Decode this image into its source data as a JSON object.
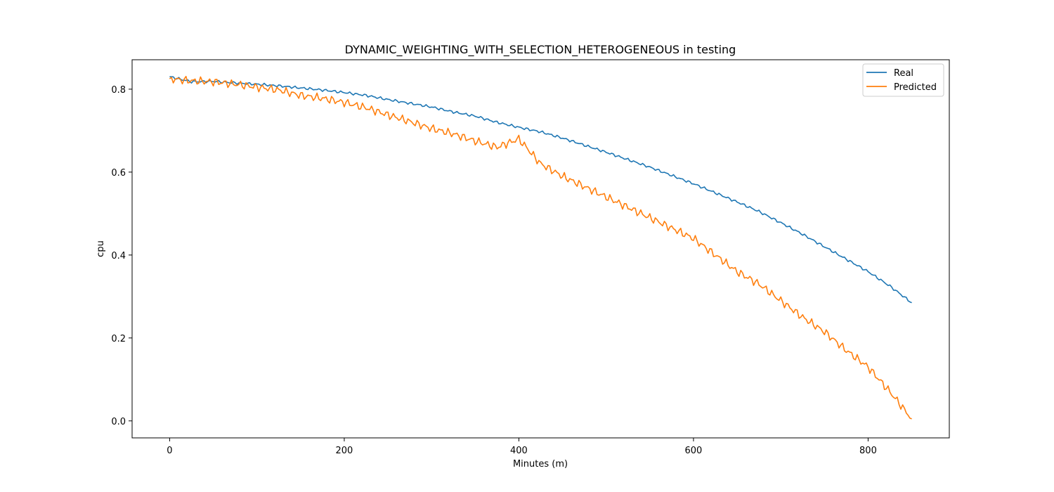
{
  "chart_data": {
    "type": "line",
    "title": "DYNAMIC_WEIGHTING_WITH_SELECTION_HETEROGENEOUS in testing",
    "xlabel": "Minutes (m)",
    "ylabel": "cpu",
    "xlim": [
      -43,
      893
    ],
    "ylim": [
      -0.041,
      0.871
    ],
    "xticks": [
      0,
      200,
      400,
      600,
      800
    ],
    "yticks": [
      0.0,
      0.2,
      0.4,
      0.6,
      0.8
    ],
    "ytick_labels": [
      "0.0",
      "0.2",
      "0.4",
      "0.6",
      "0.8"
    ],
    "grid": false,
    "legend_position": "top-right",
    "series": [
      {
        "name": "Real",
        "color": "#1f77b4",
        "x": [
          0,
          25,
          50,
          75,
          100,
          125,
          150,
          175,
          200,
          225,
          250,
          275,
          300,
          325,
          350,
          375,
          400,
          425,
          450,
          475,
          500,
          525,
          550,
          575,
          600,
          625,
          650,
          675,
          700,
          725,
          750,
          775,
          800,
          825,
          850
        ],
        "values": [
          0.83,
          0.818,
          0.819,
          0.815,
          0.812,
          0.808,
          0.803,
          0.798,
          0.792,
          0.785,
          0.775,
          0.766,
          0.757,
          0.745,
          0.735,
          0.72,
          0.708,
          0.697,
          0.682,
          0.665,
          0.648,
          0.63,
          0.612,
          0.592,
          0.572,
          0.55,
          0.528,
          0.505,
          0.478,
          0.45,
          0.42,
          0.39,
          0.36,
          0.325,
          0.285
        ]
      },
      {
        "name": "Predicted",
        "color": "#ff7f0e",
        "x": [
          0,
          25,
          50,
          75,
          100,
          125,
          150,
          175,
          200,
          225,
          250,
          275,
          300,
          325,
          350,
          375,
          400,
          425,
          450,
          475,
          500,
          525,
          550,
          575,
          600,
          625,
          650,
          675,
          700,
          725,
          750,
          775,
          800,
          825,
          850
        ],
        "values": [
          0.825,
          0.82,
          0.818,
          0.812,
          0.805,
          0.798,
          0.785,
          0.778,
          0.768,
          0.755,
          0.738,
          0.722,
          0.705,
          0.692,
          0.675,
          0.66,
          0.68,
          0.62,
          0.59,
          0.565,
          0.54,
          0.515,
          0.49,
          0.465,
          0.44,
          0.4,
          0.36,
          0.33,
          0.29,
          0.25,
          0.215,
          0.17,
          0.13,
          0.07,
          0.005
        ]
      }
    ]
  }
}
